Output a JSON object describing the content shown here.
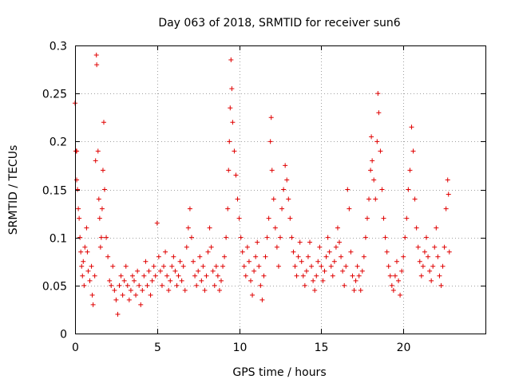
{
  "chart_data": {
    "type": "scatter",
    "title": "Day 063 of 2018, SRMTID for receiver sun6",
    "xlabel": "GPS time / hours",
    "ylabel": "SRMTID / TECUs",
    "xlim": [
      0,
      25
    ],
    "ylim": [
      0,
      0.3
    ],
    "x_ticks": [
      0,
      5,
      10,
      15,
      20
    ],
    "x_tick_labels": [
      "0",
      "5",
      "10",
      "15",
      "20"
    ],
    "y_ticks": [
      0,
      0.05,
      0.1,
      0.15,
      0.2,
      0.25,
      0.3
    ],
    "y_tick_labels": [
      "0",
      "0.05",
      "0.1",
      "0.15",
      "0.2",
      "0.25",
      "0.3"
    ],
    "grid": true,
    "marker": "+",
    "color": "#e00000",
    "series": [
      {
        "name": "SRMTID",
        "points": [
          [
            0.0,
            0.24
          ],
          [
            0.05,
            0.19
          ],
          [
            0.1,
            0.19
          ],
          [
            0.1,
            0.16
          ],
          [
            0.15,
            0.15
          ],
          [
            0.2,
            0.13
          ],
          [
            0.25,
            0.12
          ],
          [
            0.3,
            0.1
          ],
          [
            0.35,
            0.085
          ],
          [
            0.4,
            0.07
          ],
          [
            0.45,
            0.06
          ],
          [
            0.5,
            0.075
          ],
          [
            0.55,
            0.05
          ],
          [
            0.6,
            0.09
          ],
          [
            0.7,
            0.11
          ],
          [
            0.75,
            0.085
          ],
          [
            0.8,
            0.065
          ],
          [
            0.9,
            0.055
          ],
          [
            1.0,
            0.07
          ],
          [
            1.05,
            0.04
          ],
          [
            1.1,
            0.03
          ],
          [
            1.2,
            0.06
          ],
          [
            1.25,
            0.18
          ],
          [
            1.3,
            0.29
          ],
          [
            1.32,
            0.28
          ],
          [
            1.4,
            0.19
          ],
          [
            1.45,
            0.14
          ],
          [
            1.5,
            0.12
          ],
          [
            1.55,
            0.09
          ],
          [
            1.6,
            0.1
          ],
          [
            1.65,
            0.13
          ],
          [
            1.7,
            0.17
          ],
          [
            1.75,
            0.22
          ],
          [
            1.8,
            0.15
          ],
          [
            1.9,
            0.1
          ],
          [
            2.0,
            0.08
          ],
          [
            2.1,
            0.055
          ],
          [
            2.2,
            0.05
          ],
          [
            2.3,
            0.07
          ],
          [
            2.4,
            0.045
          ],
          [
            2.5,
            0.035
          ],
          [
            2.6,
            0.02
          ],
          [
            2.7,
            0.05
          ],
          [
            2.8,
            0.06
          ],
          [
            2.9,
            0.04
          ],
          [
            3.0,
            0.055
          ],
          [
            3.1,
            0.07
          ],
          [
            3.2,
            0.05
          ],
          [
            3.3,
            0.035
          ],
          [
            3.4,
            0.045
          ],
          [
            3.5,
            0.06
          ],
          [
            3.6,
            0.055
          ],
          [
            3.7,
            0.04
          ],
          [
            3.8,
            0.065
          ],
          [
            3.9,
            0.05
          ],
          [
            4.0,
            0.03
          ],
          [
            4.1,
            0.045
          ],
          [
            4.2,
            0.06
          ],
          [
            4.3,
            0.075
          ],
          [
            4.4,
            0.05
          ],
          [
            4.5,
            0.065
          ],
          [
            4.6,
            0.04
          ],
          [
            4.7,
            0.055
          ],
          [
            4.8,
            0.07
          ],
          [
            4.9,
            0.06
          ],
          [
            5.0,
            0.115
          ],
          [
            5.1,
            0.08
          ],
          [
            5.2,
            0.065
          ],
          [
            5.3,
            0.05
          ],
          [
            5.4,
            0.07
          ],
          [
            5.5,
            0.085
          ],
          [
            5.6,
            0.06
          ],
          [
            5.7,
            0.045
          ],
          [
            5.8,
            0.055
          ],
          [
            5.9,
            0.07
          ],
          [
            6.0,
            0.08
          ],
          [
            6.1,
            0.065
          ],
          [
            6.2,
            0.05
          ],
          [
            6.3,
            0.06
          ],
          [
            6.4,
            0.075
          ],
          [
            6.5,
            0.055
          ],
          [
            6.6,
            0.07
          ],
          [
            6.7,
            0.045
          ],
          [
            6.8,
            0.09
          ],
          [
            6.9,
            0.11
          ],
          [
            7.0,
            0.13
          ],
          [
            7.1,
            0.1
          ],
          [
            7.2,
            0.075
          ],
          [
            7.3,
            0.06
          ],
          [
            7.4,
            0.05
          ],
          [
            7.5,
            0.065
          ],
          [
            7.6,
            0.08
          ],
          [
            7.7,
            0.055
          ],
          [
            7.8,
            0.07
          ],
          [
            7.9,
            0.045
          ],
          [
            8.0,
            0.06
          ],
          [
            8.1,
            0.085
          ],
          [
            8.2,
            0.11
          ],
          [
            8.3,
            0.09
          ],
          [
            8.4,
            0.065
          ],
          [
            8.5,
            0.05
          ],
          [
            8.6,
            0.07
          ],
          [
            8.7,
            0.06
          ],
          [
            8.8,
            0.045
          ],
          [
            8.9,
            0.055
          ],
          [
            9.0,
            0.07
          ],
          [
            9.1,
            0.08
          ],
          [
            9.2,
            0.1
          ],
          [
            9.3,
            0.13
          ],
          [
            9.35,
            0.17
          ],
          [
            9.4,
            0.2
          ],
          [
            9.45,
            0.235
          ],
          [
            9.5,
            0.285
          ],
          [
            9.55,
            0.255
          ],
          [
            9.6,
            0.22
          ],
          [
            9.7,
            0.19
          ],
          [
            9.8,
            0.165
          ],
          [
            9.9,
            0.14
          ],
          [
            10.0,
            0.12
          ],
          [
            10.1,
            0.1
          ],
          [
            10.2,
            0.085
          ],
          [
            10.3,
            0.07
          ],
          [
            10.4,
            0.06
          ],
          [
            10.5,
            0.09
          ],
          [
            10.6,
            0.075
          ],
          [
            10.7,
            0.055
          ],
          [
            10.8,
            0.04
          ],
          [
            10.9,
            0.065
          ],
          [
            11.0,
            0.08
          ],
          [
            11.1,
            0.095
          ],
          [
            11.2,
            0.07
          ],
          [
            11.3,
            0.05
          ],
          [
            11.4,
            0.035
          ],
          [
            11.5,
            0.06
          ],
          [
            11.6,
            0.08
          ],
          [
            11.7,
            0.1
          ],
          [
            11.8,
            0.12
          ],
          [
            11.9,
            0.2
          ],
          [
            11.95,
            0.225
          ],
          [
            12.0,
            0.17
          ],
          [
            12.1,
            0.14
          ],
          [
            12.2,
            0.11
          ],
          [
            12.3,
            0.09
          ],
          [
            12.4,
            0.07
          ],
          [
            12.5,
            0.1
          ],
          [
            12.6,
            0.13
          ],
          [
            12.7,
            0.15
          ],
          [
            12.8,
            0.175
          ],
          [
            12.9,
            0.16
          ],
          [
            13.0,
            0.14
          ],
          [
            13.1,
            0.12
          ],
          [
            13.2,
            0.1
          ],
          [
            13.3,
            0.085
          ],
          [
            13.4,
            0.07
          ],
          [
            13.5,
            0.06
          ],
          [
            13.6,
            0.08
          ],
          [
            13.7,
            0.095
          ],
          [
            13.8,
            0.075
          ],
          [
            13.9,
            0.06
          ],
          [
            14.0,
            0.05
          ],
          [
            14.1,
            0.065
          ],
          [
            14.2,
            0.08
          ],
          [
            14.3,
            0.095
          ],
          [
            14.4,
            0.07
          ],
          [
            14.5,
            0.055
          ],
          [
            14.6,
            0.045
          ],
          [
            14.7,
            0.06
          ],
          [
            14.8,
            0.075
          ],
          [
            14.9,
            0.09
          ],
          [
            15.0,
            0.07
          ],
          [
            15.1,
            0.055
          ],
          [
            15.2,
            0.065
          ],
          [
            15.3,
            0.08
          ],
          [
            15.4,
            0.1
          ],
          [
            15.5,
            0.085
          ],
          [
            15.6,
            0.07
          ],
          [
            15.7,
            0.06
          ],
          [
            15.8,
            0.075
          ],
          [
            15.9,
            0.09
          ],
          [
            16.0,
            0.11
          ],
          [
            16.1,
            0.095
          ],
          [
            16.2,
            0.08
          ],
          [
            16.3,
            0.065
          ],
          [
            16.4,
            0.05
          ],
          [
            16.5,
            0.07
          ],
          [
            16.6,
            0.15
          ],
          [
            16.7,
            0.13
          ],
          [
            16.8,
            0.085
          ],
          [
            16.9,
            0.06
          ],
          [
            17.0,
            0.045
          ],
          [
            17.1,
            0.055
          ],
          [
            17.2,
            0.07
          ],
          [
            17.3,
            0.06
          ],
          [
            17.4,
            0.045
          ],
          [
            17.5,
            0.065
          ],
          [
            17.6,
            0.08
          ],
          [
            17.7,
            0.1
          ],
          [
            17.8,
            0.12
          ],
          [
            17.9,
            0.14
          ],
          [
            18.0,
            0.17
          ],
          [
            18.05,
            0.205
          ],
          [
            18.1,
            0.18
          ],
          [
            18.2,
            0.16
          ],
          [
            18.3,
            0.14
          ],
          [
            18.4,
            0.2
          ],
          [
            18.45,
            0.25
          ],
          [
            18.5,
            0.23
          ],
          [
            18.6,
            0.19
          ],
          [
            18.7,
            0.15
          ],
          [
            18.8,
            0.12
          ],
          [
            18.9,
            0.1
          ],
          [
            19.0,
            0.085
          ],
          [
            19.1,
            0.07
          ],
          [
            19.2,
            0.06
          ],
          [
            19.3,
            0.05
          ],
          [
            19.4,
            0.045
          ],
          [
            19.5,
            0.06
          ],
          [
            19.6,
            0.075
          ],
          [
            19.7,
            0.055
          ],
          [
            19.8,
            0.04
          ],
          [
            19.9,
            0.065
          ],
          [
            20.0,
            0.08
          ],
          [
            20.1,
            0.1
          ],
          [
            20.2,
            0.12
          ],
          [
            20.3,
            0.15
          ],
          [
            20.4,
            0.17
          ],
          [
            20.5,
            0.215
          ],
          [
            20.6,
            0.19
          ],
          [
            20.7,
            0.14
          ],
          [
            20.8,
            0.11
          ],
          [
            20.9,
            0.09
          ],
          [
            21.0,
            0.075
          ],
          [
            21.1,
            0.06
          ],
          [
            21.2,
            0.07
          ],
          [
            21.3,
            0.085
          ],
          [
            21.4,
            0.1
          ],
          [
            21.5,
            0.08
          ],
          [
            21.6,
            0.065
          ],
          [
            21.7,
            0.055
          ],
          [
            21.8,
            0.07
          ],
          [
            21.9,
            0.09
          ],
          [
            22.0,
            0.11
          ],
          [
            22.1,
            0.08
          ],
          [
            22.2,
            0.06
          ],
          [
            22.3,
            0.05
          ],
          [
            22.4,
            0.07
          ],
          [
            22.5,
            0.09
          ],
          [
            22.6,
            0.13
          ],
          [
            22.7,
            0.16
          ],
          [
            22.75,
            0.145
          ],
          [
            22.8,
            0.085
          ]
        ]
      }
    ]
  }
}
